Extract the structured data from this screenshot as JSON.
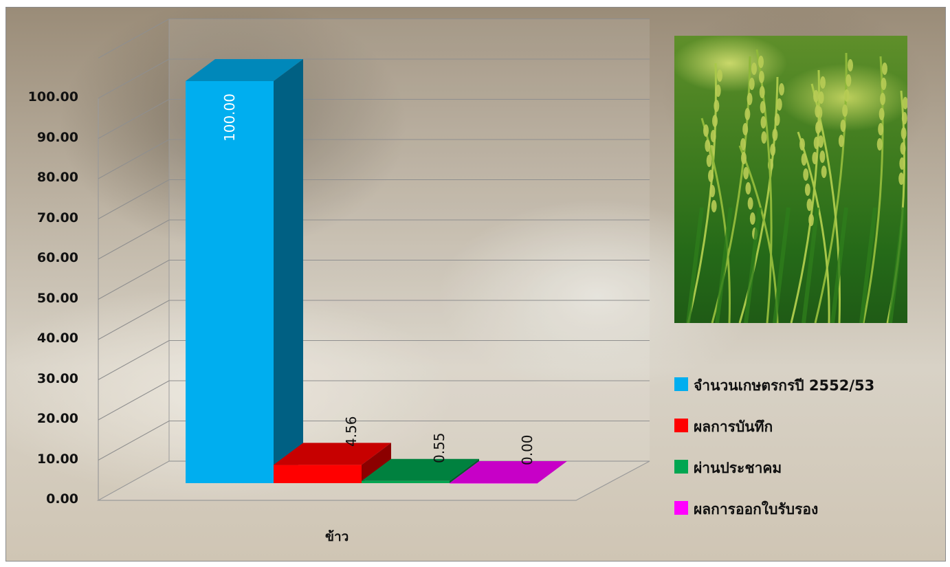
{
  "chart_data": {
    "type": "bar",
    "style": "3d-column",
    "categories": [
      "ข้าว"
    ],
    "series": [
      {
        "name": "จำนวนเกษตรกรปี  2552/53",
        "values": [
          100.0
        ],
        "label": "100.00",
        "color": "#00aeef"
      },
      {
        "name": "ผลการบันทึก",
        "values": [
          4.56
        ],
        "label": "4.56",
        "color": "#ff0000"
      },
      {
        "name": "ผ่านประชาคม",
        "values": [
          0.55
        ],
        "label": "0.55",
        "color": "#00a651"
      },
      {
        "name": "ผลการออกใบรับรอง",
        "values": [
          0.0
        ],
        "label": "0.00",
        "color": "#ff00ff"
      }
    ],
    "ylim": [
      0,
      100
    ],
    "yticks": [
      "0.00",
      "10.00",
      "20.00",
      "30.00",
      "40.00",
      "50.00",
      "60.00",
      "70.00",
      "80.00",
      "90.00",
      "100.00"
    ],
    "grid": true,
    "legend_position": "right"
  },
  "photo": {
    "subject": "rice plants"
  }
}
